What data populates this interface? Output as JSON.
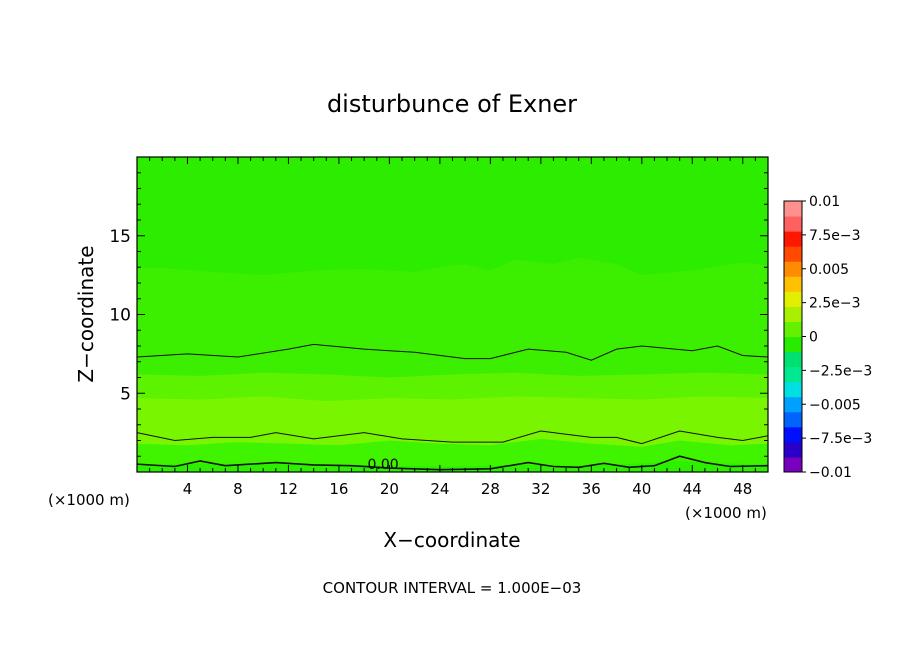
{
  "chart_data": {
    "type": "contour",
    "title": "disturbunce of Exner",
    "xlabel": "X−coordinate",
    "ylabel": "Z−coordinate",
    "x_unit_left": "(×1000 m)",
    "x_unit_right": "(×1000 m)",
    "footer": "CONTOUR INTERVAL = 1.000E−03",
    "contour_label": "0.00",
    "xlim": [
      0,
      50
    ],
    "ylim": [
      0,
      20
    ],
    "x_ticks": [
      4,
      8,
      12,
      16,
      20,
      24,
      28,
      32,
      36,
      40,
      44,
      48
    ],
    "x_tick_labels": [
      "4",
      "8",
      "12",
      "16",
      "20",
      "24",
      "28",
      "32",
      "36",
      "40",
      "44",
      "48"
    ],
    "y_ticks": [
      5,
      10,
      15
    ],
    "y_tick_labels": [
      "5",
      "10",
      "15"
    ],
    "colorbar": {
      "min": -0.01,
      "max": 0.01,
      "levels": [
        {
          "value": -0.01,
          "label": "−0.01"
        },
        {
          "value": -0.0075,
          "label": "−7.5e−3"
        },
        {
          "value": -0.005,
          "label": "−0.005"
        },
        {
          "value": -0.0025,
          "label": "−2.5e−3"
        },
        {
          "value": 0,
          "label": "0"
        },
        {
          "value": 0.0025,
          "label": "2.5e−3"
        },
        {
          "value": 0.005,
          "label": "0.005"
        },
        {
          "value": 0.0075,
          "label": "7.5e−3"
        },
        {
          "value": 0.01,
          "label": "0.01"
        }
      ],
      "colors": [
        "#7a00c0",
        "#2800c8",
        "#0010ff",
        "#0064ff",
        "#00a0ff",
        "#00e0e0",
        "#00e890",
        "#00e070",
        "#28ec00",
        "#64f000",
        "#a8f000",
        "#e0f000",
        "#ffc000",
        "#ff8c00",
        "#ff4a00",
        "#ff1800",
        "#ff6060",
        "#ff9090"
      ]
    },
    "bands": [
      {
        "name": "band-surface",
        "color": "#2cf000",
        "upper": [
          [
            0,
            0.45
          ],
          [
            5,
            0.55
          ],
          [
            10,
            0.5
          ],
          [
            15,
            0.5
          ],
          [
            20,
            0.4
          ],
          [
            25,
            0.35
          ],
          [
            30,
            0.45
          ],
          [
            35,
            0.4
          ],
          [
            40,
            0.55
          ],
          [
            43,
            0.7
          ],
          [
            46,
            0.55
          ],
          [
            50,
            0.5
          ]
        ]
      },
      {
        "name": "band-low",
        "color": "#40f400",
        "upper": [
          [
            0,
            1.8
          ],
          [
            4,
            1.7
          ],
          [
            8,
            1.9
          ],
          [
            12,
            1.8
          ],
          [
            16,
            1.7
          ],
          [
            20,
            2.0
          ],
          [
            24,
            1.8
          ],
          [
            28,
            1.7
          ],
          [
            32,
            2.1
          ],
          [
            36,
            1.8
          ],
          [
            40,
            1.6
          ],
          [
            43,
            2.0
          ],
          [
            47,
            1.7
          ],
          [
            50,
            1.8
          ]
        ]
      },
      {
        "name": "band-mid",
        "color": "#7af500",
        "upper": [
          [
            0,
            4.7
          ],
          [
            5,
            4.6
          ],
          [
            10,
            4.8
          ],
          [
            15,
            4.5
          ],
          [
            20,
            4.7
          ],
          [
            25,
            4.6
          ],
          [
            30,
            4.8
          ],
          [
            35,
            4.7
          ],
          [
            40,
            4.6
          ],
          [
            45,
            4.8
          ],
          [
            50,
            4.7
          ]
        ]
      },
      {
        "name": "band-mid2",
        "color": "#5cf200",
        "upper": [
          [
            0,
            6.2
          ],
          [
            5,
            6.1
          ],
          [
            10,
            6.3
          ],
          [
            15,
            6.2
          ],
          [
            20,
            6.0
          ],
          [
            25,
            6.2
          ],
          [
            30,
            6.3
          ],
          [
            35,
            6.1
          ],
          [
            40,
            6.2
          ],
          [
            45,
            6.3
          ],
          [
            50,
            6.2
          ]
        ]
      },
      {
        "name": "band-upper",
        "color": "#3cef00",
        "upper": [
          [
            0,
            13.0
          ],
          [
            3,
            12.9
          ],
          [
            6,
            12.7
          ],
          [
            10,
            12.5
          ],
          [
            14,
            12.8
          ],
          [
            18,
            12.9
          ],
          [
            22,
            12.7
          ],
          [
            24,
            13.0
          ],
          [
            26,
            13.2
          ],
          [
            28,
            12.8
          ],
          [
            30,
            13.5
          ],
          [
            33,
            13.2
          ],
          [
            35,
            13.6
          ],
          [
            38,
            13.2
          ],
          [
            40,
            12.5
          ],
          [
            44,
            12.8
          ],
          [
            48,
            13.3
          ],
          [
            50,
            13.1
          ]
        ]
      },
      {
        "name": "band-top",
        "color": "#2cec00",
        "upper": [
          [
            0,
            20
          ],
          [
            50,
            20
          ]
        ]
      }
    ],
    "contours": [
      {
        "name": "contour-upper",
        "level": "positive",
        "points": [
          [
            0,
            7.3
          ],
          [
            4,
            7.5
          ],
          [
            8,
            7.3
          ],
          [
            12,
            7.8
          ],
          [
            14,
            8.1
          ],
          [
            18,
            7.8
          ],
          [
            22,
            7.6
          ],
          [
            26,
            7.2
          ],
          [
            28,
            7.2
          ],
          [
            31,
            7.8
          ],
          [
            34,
            7.6
          ],
          [
            36,
            7.1
          ],
          [
            38,
            7.8
          ],
          [
            40,
            8.0
          ],
          [
            44,
            7.7
          ],
          [
            46,
            8.0
          ],
          [
            48,
            7.4
          ],
          [
            50,
            7.3
          ]
        ]
      },
      {
        "name": "contour-low",
        "level": "positive",
        "points": [
          [
            0,
            2.5
          ],
          [
            3,
            2.0
          ],
          [
            6,
            2.2
          ],
          [
            9,
            2.2
          ],
          [
            11,
            2.5
          ],
          [
            14,
            2.1
          ],
          [
            18,
            2.5
          ],
          [
            21,
            2.1
          ],
          [
            25,
            1.9
          ],
          [
            29,
            1.9
          ],
          [
            32,
            2.6
          ],
          [
            34,
            2.4
          ],
          [
            36,
            2.2
          ],
          [
            38,
            2.2
          ],
          [
            40,
            1.8
          ],
          [
            43,
            2.6
          ],
          [
            46,
            2.2
          ],
          [
            48,
            2.0
          ],
          [
            50,
            2.3
          ]
        ]
      },
      {
        "name": "contour-zero",
        "level": "0.00",
        "points": [
          [
            0,
            0.5
          ],
          [
            3,
            0.35
          ],
          [
            5,
            0.7
          ],
          [
            7,
            0.4
          ],
          [
            11,
            0.6
          ],
          [
            14,
            0.45
          ],
          [
            17,
            0.4
          ],
          [
            20,
            0.25
          ],
          [
            24,
            0.15
          ],
          [
            28,
            0.2
          ],
          [
            31,
            0.6
          ],
          [
            33,
            0.35
          ],
          [
            35,
            0.3
          ],
          [
            37,
            0.55
          ],
          [
            39,
            0.3
          ],
          [
            41,
            0.4
          ],
          [
            43,
            1.0
          ],
          [
            45,
            0.6
          ],
          [
            47,
            0.35
          ],
          [
            50,
            0.4
          ]
        ]
      }
    ]
  }
}
